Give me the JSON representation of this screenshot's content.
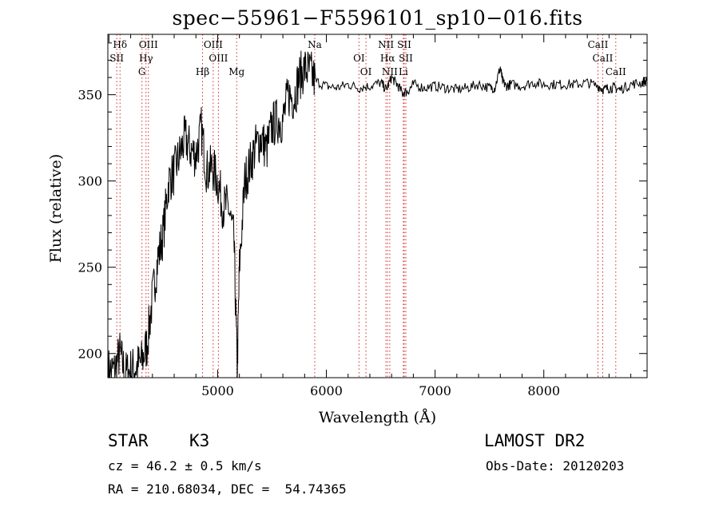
{
  "chart_data": {
    "type": "line",
    "title": "spec−55961−F5596101_sp10−016.fits",
    "xlabel": "Wavelength (Å)",
    "ylabel": "Flux (relative)",
    "xlim": [
      3990,
      8950
    ],
    "ylim": [
      186,
      385
    ],
    "xticks": [
      5000,
      6000,
      7000,
      8000
    ],
    "yticks": [
      200,
      250,
      300,
      350
    ],
    "grid": false,
    "series": [
      {
        "x": [
          3995,
          4050,
          4100,
          4150,
          4200,
          4250,
          4300,
          4350,
          4400,
          4450,
          4500,
          4550,
          4600,
          4650,
          4700,
          4750,
          4800,
          4850,
          4900,
          4950,
          5000,
          5050,
          5100,
          5150,
          5180,
          5200,
          5250,
          5300,
          5350,
          5400,
          5450,
          5500,
          5550,
          5600,
          5650,
          5700,
          5750,
          5800,
          5850,
          5900,
          6000,
          6100,
          6200,
          6300,
          6400,
          6500,
          6550,
          6600,
          6650,
          6700,
          6750,
          6800,
          6900,
          7000,
          7100,
          7200,
          7300,
          7400,
          7500,
          7550,
          7600,
          7620,
          7650,
          7700,
          7800,
          7900,
          8000,
          8100,
          8200,
          8300,
          8400,
          8500,
          8550,
          8600,
          8650,
          8700,
          8800,
          8900,
          8950
        ],
        "y": [
          190,
          190,
          200,
          188,
          190,
          192,
          195,
          205,
          232,
          255,
          270,
          300,
          305,
          315,
          325,
          318,
          315,
          330,
          305,
          308,
          300,
          285,
          285,
          265,
          190,
          250,
          300,
          310,
          320,
          325,
          318,
          332,
          335,
          335,
          350,
          348,
          360,
          365,
          363,
          358,
          355,
          354,
          356,
          354,
          355,
          357,
          353,
          360,
          356,
          351,
          352,
          356,
          354,
          355,
          354,
          353,
          354,
          356,
          354,
          354,
          366,
          358,
          355,
          356,
          355,
          357,
          356,
          356,
          356,
          356,
          357,
          355,
          353,
          354,
          354,
          353,
          356,
          357,
          358
        ]
      }
    ],
    "lines": [
      {
        "label": "Hδ",
        "x": 4102
      },
      {
        "label": "SII",
        "x": 4072
      },
      {
        "label": "G",
        "x": 4304
      },
      {
        "label": "OIII",
        "x": 4363
      },
      {
        "label": "Hγ",
        "x": 4341
      },
      {
        "label": "Hβ",
        "x": 4861
      },
      {
        "label": "OIII",
        "x": 4959
      },
      {
        "label": "OIII",
        "x": 5007
      },
      {
        "label": "Mg",
        "x": 5175
      },
      {
        "label": "Na",
        "x": 5893
      },
      {
        "label": "OI",
        "x": 6300
      },
      {
        "label": "OI",
        "x": 6364
      },
      {
        "label": "NII",
        "x": 6548
      },
      {
        "label": "Hα",
        "x": 6563
      },
      {
        "label": "NII",
        "x": 6583
      },
      {
        "label": "SII",
        "x": 6716
      },
      {
        "label": "SII",
        "x": 6731
      },
      {
        "label": "Li",
        "x": 6708
      },
      {
        "label": "CaII",
        "x": 8498
      },
      {
        "label": "CaII",
        "x": 8542
      },
      {
        "label": "CaII",
        "x": 8662
      }
    ]
  },
  "info": {
    "class": "STAR",
    "subclass": "K3",
    "survey": "LAMOST DR2",
    "cz": "cz = 46.2 ± 0.5 km/s",
    "obs_date": "Obs-Date: 20120203",
    "coords": "RA = 210.68034, DEC =  54.74365"
  }
}
